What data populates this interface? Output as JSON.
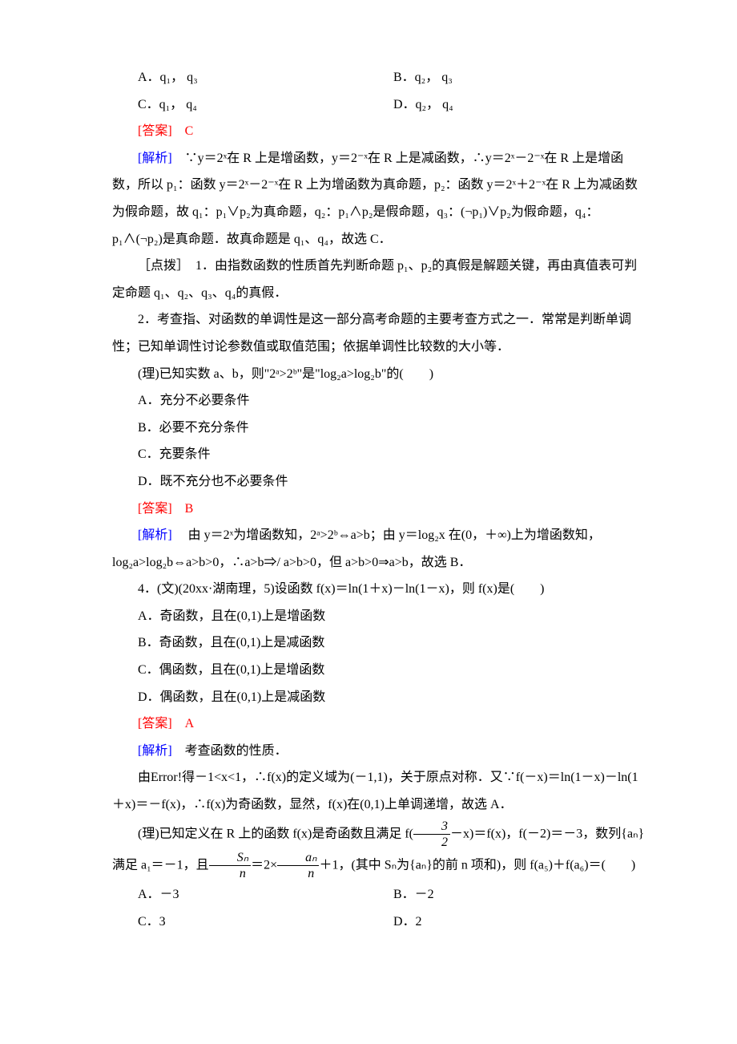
{
  "q1": {
    "optA": "A．q₁， q₃",
    "optB": "B．q₂， q₃",
    "optC": "C．q₁， q₄",
    "optD": "D．q₂， q₄",
    "ansLabel": "[答案]　C",
    "explLabel": "[解析]",
    "expl1": "　∵y＝2ˣ在 R 上是增函数，y＝2⁻ˣ在 R 上是减函数，∴y＝2ˣ－2⁻ˣ在 R 上是增函数，所以 p₁：函数 y＝2ˣ－2⁻ˣ在 R 上为增函数为真命题，p₂：函数 y＝2ˣ＋2⁻ˣ在 R 上为减函数为假命题，故 q₁：p₁∨p₂为真命题，q₂：p₁∧p₂是假命题，q₃：(¬p₁)∨p₂为假命题，q₄：p₁∧(¬p₂)是真命题．故真命题是 q₁、q₄，故选 C．",
    "note1": "［点拨］　1．由指数函数的性质首先判断命题 p₁、p₂的真假是解题关键，再由真值表可判定命题 q₁、q₂、q₃、q₄的真假．",
    "note2": "2．考查指、对函数的单调性是这一部分高考命题的主要考查方式之一．常常是判断单调性；已知单调性讨论参数值或取值范围；依据单调性比较数的大小等．"
  },
  "q2": {
    "stem": "(理)已知实数 a、b，则\"2ᵃ>2ᵇ\"是\"log₂a>log₂b\"的(　　)",
    "optA": "A．充分不必要条件",
    "optB": "B．必要不充分条件",
    "optC": "C．充要条件",
    "optD": "D．既不充分也不必要条件",
    "ansLabel": "[答案]　B",
    "explLabel": "[解析]",
    "expl": "　 由 y＝2ˣ为增函数知，2ᵃ>2ᵇ⇔a>b；由 y＝log₂x 在(0，＋∞)上为增函数知，log₂a>log₂b⇔a>b>0，∴a>b⇒/ a>b>0，但 a>b>0⇒a>b，故选 B．"
  },
  "q3": {
    "stem": "4．(文)(20xx·湖南理，5)设函数 f(x)＝ln(1＋x)－ln(1－x)，则 f(x)是(　　)",
    "optA": "A．奇函数，且在(0,1)上是增函数",
    "optB": "B．奇函数，且在(0,1)上是减函数",
    "optC": "C．偶函数，且在(0,1)上是增函数",
    "optD": "D．偶函数，且在(0,1)上是减函数",
    "ansLabel": "[答案]　A",
    "explLabel": "[解析]",
    "explShort": "　考查函数的性质．",
    "expl": "由Error!得－1<x<1，∴f(x)的定义域为(－1,1)，关于原点对称．又∵f(－x)＝ln(1－x)－ln(1＋x)＝－f(x)，∴f(x)为奇函数，显然，f(x)在(0,1)上单调递增，故选 A．"
  },
  "q4": {
    "stemPre": "(理)已知定义在 R 上的函数 f(x)是奇函数且满足 f(",
    "fracNum": "3",
    "fracDen": "2",
    "stemMid": "－x)＝f(x)，f(－2)＝－3，数列{aₙ}满足 a₁＝－1，且",
    "frac2Num": "Sₙ",
    "frac2Den": "n",
    "stemMid2": "＝2×",
    "frac3Num": "aₙ",
    "frac3Den": "n",
    "stemPost": "＋1，(其中 Sₙ为{aₙ}的前 n 项和)，则 f(a₅)＋f(a₆)＝(　　)",
    "optA": "A．－3",
    "optB": "B．－2",
    "optC": "C．3",
    "optD": "D．2"
  }
}
